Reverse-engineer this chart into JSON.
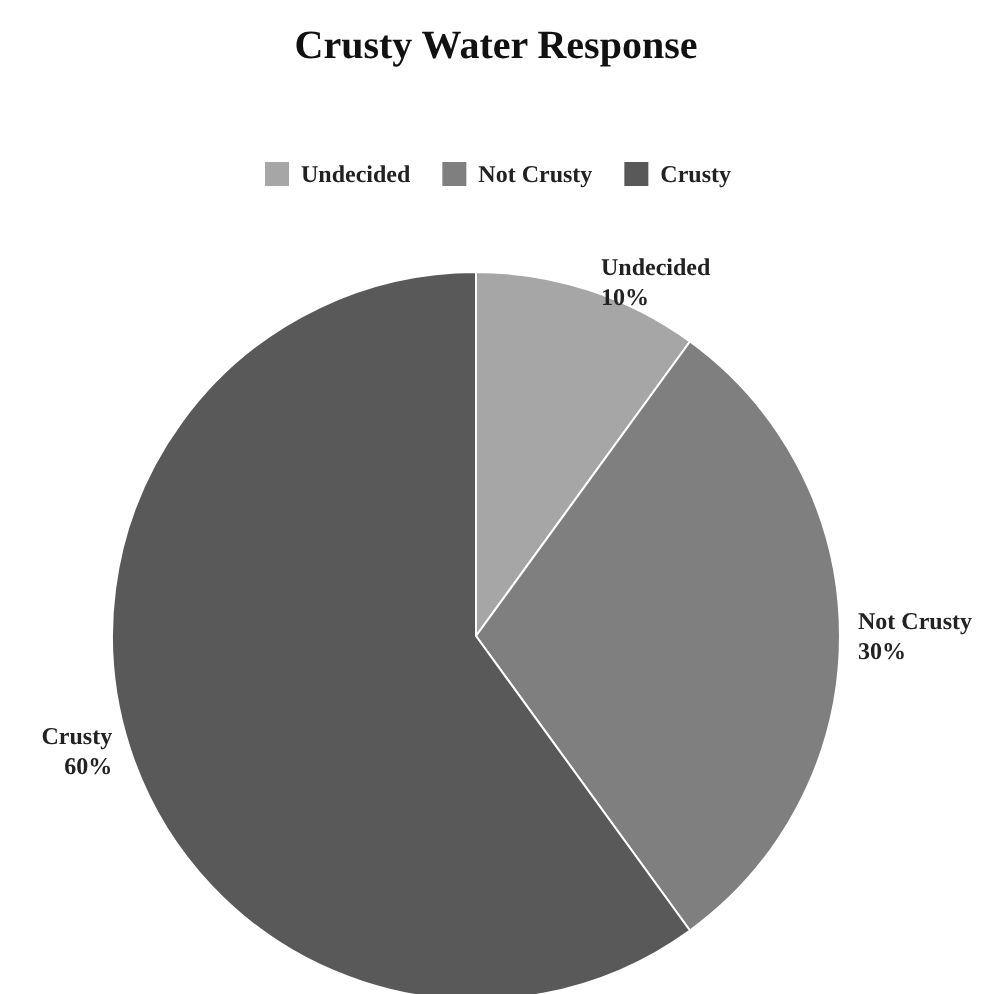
{
  "chart_data": {
    "type": "pie",
    "title": "Crusty Water Response",
    "categories": [
      "Undecided",
      "Not Crusty",
      "Crusty"
    ],
    "values": [
      10,
      30,
      60
    ],
    "colors": [
      "#a6a6a6",
      "#7f7f7f",
      "#595959"
    ],
    "value_labels": [
      "10%",
      "30%",
      "60%"
    ],
    "legend": "top"
  }
}
